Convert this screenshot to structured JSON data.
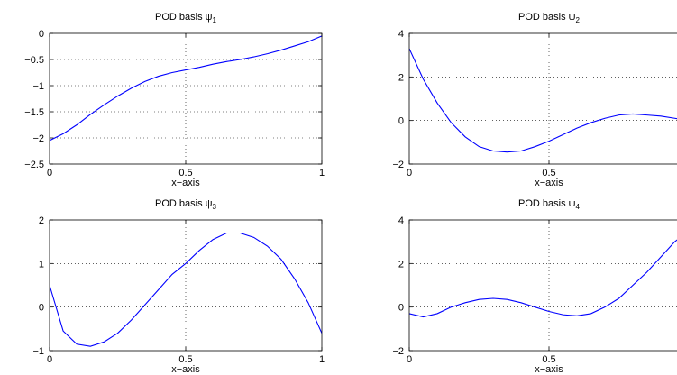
{
  "chart_data": [
    {
      "type": "line",
      "title": "POD basis ψ",
      "title_subscript": "1",
      "xlabel": "x−axis",
      "ylabel": "",
      "xlim": [
        0,
        1
      ],
      "ylim": [
        -2.5,
        0
      ],
      "xticks": [
        0,
        0.5,
        1
      ],
      "xtick_labels": [
        "0",
        "0.5",
        "1"
      ],
      "yticks": [
        -2.5,
        -2,
        -1.5,
        -1,
        -0.5,
        0
      ],
      "ytick_labels": [
        "−2.5",
        "−2",
        "−1.5",
        "−1",
        "−0.5",
        "0"
      ],
      "grid": true,
      "color": "#0000ff",
      "series": [
        {
          "x": [
            0,
            0.05,
            0.1,
            0.15,
            0.2,
            0.25,
            0.3,
            0.35,
            0.4,
            0.45,
            0.5,
            0.55,
            0.6,
            0.65,
            0.7,
            0.75,
            0.8,
            0.85,
            0.9,
            0.95,
            1
          ],
          "y": [
            -2.05,
            -1.92,
            -1.75,
            -1.55,
            -1.37,
            -1.2,
            -1.05,
            -0.92,
            -0.82,
            -0.75,
            -0.7,
            -0.65,
            -0.59,
            -0.54,
            -0.5,
            -0.45,
            -0.39,
            -0.32,
            -0.24,
            -0.16,
            -0.05
          ]
        }
      ]
    },
    {
      "type": "line",
      "title": "POD basis ψ",
      "title_subscript": "2",
      "xlabel": "x−axis",
      "ylabel": "",
      "xlim": [
        0,
        1
      ],
      "ylim": [
        -2,
        4
      ],
      "xticks": [
        0,
        0.5
      ],
      "xtick_labels": [
        "0",
        "0.5"
      ],
      "yticks": [
        -2,
        0,
        2,
        4
      ],
      "ytick_labels": [
        "−2",
        "0",
        "2",
        "4"
      ],
      "grid": true,
      "color": "#0000ff",
      "series": [
        {
          "x": [
            0,
            0.05,
            0.1,
            0.15,
            0.2,
            0.25,
            0.3,
            0.35,
            0.4,
            0.45,
            0.5,
            0.55,
            0.6,
            0.65,
            0.7,
            0.75,
            0.8,
            0.85,
            0.9,
            0.95,
            1
          ],
          "y": [
            3.3,
            1.9,
            0.8,
            -0.1,
            -0.75,
            -1.2,
            -1.4,
            -1.45,
            -1.4,
            -1.2,
            -0.95,
            -0.65,
            -0.35,
            -0.1,
            0.1,
            0.25,
            0.3,
            0.25,
            0.2,
            0.1,
            0.0
          ]
        }
      ]
    },
    {
      "type": "line",
      "title": "POD basis ψ",
      "title_subscript": "3",
      "xlabel": "x−axis",
      "ylabel": "",
      "xlim": [
        0,
        1
      ],
      "ylim": [
        -1,
        2
      ],
      "xticks": [
        0,
        0.5,
        1
      ],
      "xtick_labels": [
        "0",
        "0.5",
        "1"
      ],
      "yticks": [
        -1,
        0,
        1,
        2
      ],
      "ytick_labels": [
        "−1",
        "0",
        "1",
        "2"
      ],
      "grid": true,
      "color": "#0000ff",
      "series": [
        {
          "x": [
            0,
            0.05,
            0.1,
            0.15,
            0.2,
            0.25,
            0.3,
            0.35,
            0.4,
            0.45,
            0.5,
            0.55,
            0.6,
            0.65,
            0.7,
            0.75,
            0.8,
            0.85,
            0.9,
            0.95,
            1
          ],
          "y": [
            0.5,
            -0.55,
            -0.85,
            -0.9,
            -0.8,
            -0.6,
            -0.3,
            0.05,
            0.4,
            0.75,
            1.0,
            1.3,
            1.55,
            1.7,
            1.7,
            1.6,
            1.4,
            1.1,
            0.65,
            0.1,
            -0.6
          ]
        }
      ]
    },
    {
      "type": "line",
      "title": "POD basis ψ",
      "title_subscript": "4",
      "xlabel": "x−axis",
      "ylabel": "",
      "xlim": [
        0,
        1
      ],
      "ylim": [
        -2,
        4
      ],
      "xticks": [
        0,
        0.5
      ],
      "xtick_labels": [
        "0",
        "0.5"
      ],
      "yticks": [
        -2,
        0,
        2,
        4
      ],
      "ytick_labels": [
        "−2",
        "0",
        "2",
        "4"
      ],
      "grid": true,
      "color": "#0000ff",
      "series": [
        {
          "x": [
            0,
            0.05,
            0.1,
            0.15,
            0.2,
            0.25,
            0.3,
            0.35,
            0.4,
            0.45,
            0.5,
            0.55,
            0.6,
            0.65,
            0.7,
            0.75,
            0.8,
            0.85,
            0.9,
            0.95,
            1
          ],
          "y": [
            -0.3,
            -0.45,
            -0.3,
            0.0,
            0.2,
            0.35,
            0.4,
            0.35,
            0.2,
            0.0,
            -0.2,
            -0.35,
            -0.4,
            -0.3,
            0.0,
            0.4,
            1.0,
            1.6,
            2.3,
            3.0,
            3.5
          ]
        }
      ]
    }
  ]
}
